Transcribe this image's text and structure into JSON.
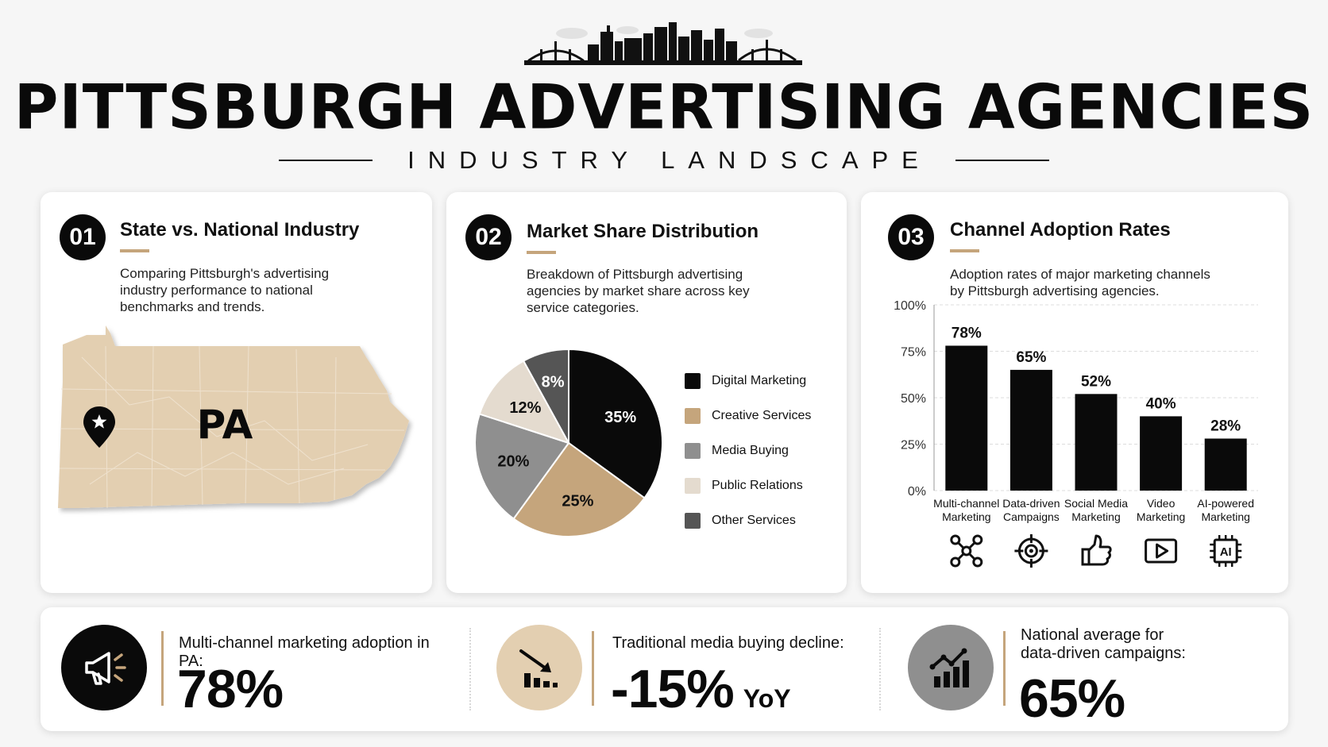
{
  "header": {
    "title": "PITTSBURGH ADVERTISING AGENCIES",
    "subtitle": "INDUSTRY LANDSCAPE"
  },
  "colors": {
    "black": "#0a0a0a",
    "tan": "#c5a57c",
    "gray": "#8f8f8f",
    "light_tan": "#e4dbcf",
    "dark_gray": "#555555",
    "map_fill": "#e3cfb1"
  },
  "cards": [
    {
      "number": "01",
      "title": "State vs. National Industry",
      "description": [
        "Comparing Pittsburgh's advertising",
        "industry performance to national",
        "benchmarks and trends."
      ],
      "map_label": "PA",
      "marker_icon": "map-pin-star-icon"
    },
    {
      "number": "02",
      "title": "Market Share Distribution",
      "description": [
        "Breakdown of Pittsburgh advertising",
        "agencies by market share across key",
        "service categories."
      ]
    },
    {
      "number": "03",
      "title": "Channel Adoption Rates",
      "description": [
        "Adoption rates of major marketing channels",
        "by Pittsburgh advertising agencies."
      ]
    }
  ],
  "chart_data": [
    {
      "type": "pie",
      "title": "Market Share Distribution",
      "labels": [
        "Digital Marketing",
        "Creative Services",
        "Media Buying",
        "Public Relations",
        "Other Services"
      ],
      "values": [
        35,
        25,
        20,
        12,
        8
      ],
      "value_labels": [
        "35%",
        "25%",
        "20%",
        "12%",
        "8%"
      ],
      "colors": [
        "#0a0a0a",
        "#c5a57c",
        "#8f8f8f",
        "#e4dbcf",
        "#555555"
      ],
      "legend": "right"
    },
    {
      "type": "bar",
      "title": "Channel Adoption Rates",
      "categories": [
        [
          "Multi-channel",
          "Marketing"
        ],
        [
          "Data-driven",
          "Campaigns"
        ],
        [
          "Social Media",
          "Marketing"
        ],
        [
          "Video",
          "Marketing"
        ],
        [
          "AI-powered",
          "Marketing"
        ]
      ],
      "values": [
        78,
        65,
        52,
        40,
        28
      ],
      "value_labels": [
        "78%",
        "65%",
        "52%",
        "40%",
        "28%"
      ],
      "yticks": [
        "0%",
        "25%",
        "50%",
        "75%",
        "100%"
      ],
      "ylim": [
        0,
        100
      ],
      "grid": true,
      "icons": [
        "network-icon",
        "target-icon",
        "thumbs-up-icon",
        "video-play-icon",
        "ai-chip-icon"
      ]
    }
  ],
  "stats": [
    {
      "label": [
        "Multi-channel marketing adoption in PA:"
      ],
      "value": "78%",
      "suffix": "",
      "icon": "megaphone-icon"
    },
    {
      "label": [
        "Traditional media buying decline:"
      ],
      "value": "-15%",
      "suffix": "YoY",
      "icon": "declining-bar-chart-icon"
    },
    {
      "label": [
        "National average for",
        "data-driven campaigns:"
      ],
      "value": "65%",
      "suffix": "",
      "icon": "rising-bar-chart-icon"
    }
  ]
}
